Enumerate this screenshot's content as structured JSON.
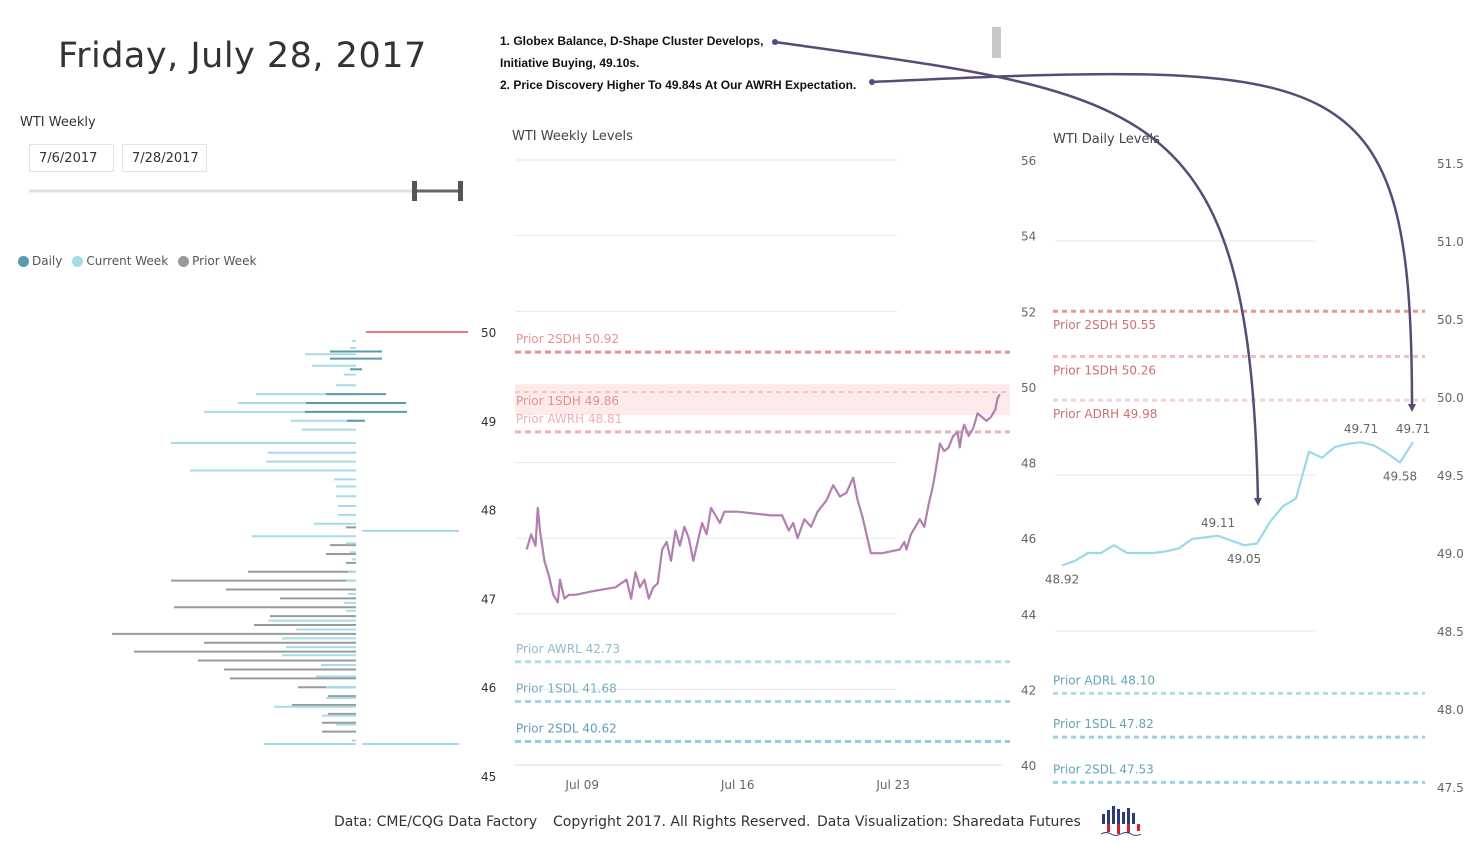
{
  "header": {
    "date_title": "Friday, July 28, 2017"
  },
  "slicer": {
    "label": "WTI Weekly",
    "start_date": "7/6/2017",
    "end_date": "7/28/2017"
  },
  "legend": {
    "items": [
      {
        "label": "Daily",
        "color": "#5b99ad"
      },
      {
        "label": "Current Week",
        "color": "#a6dce9"
      },
      {
        "label": "Prior Week",
        "color": "#9a9a9a"
      }
    ]
  },
  "notes": {
    "line1": "1. Globex Balance, D-Shape Cluster Develops,",
    "line2": "Initiative Buying, 49.10s.",
    "line3": "2. Price Discovery Higher To 49.84s At Our AWRH Expectation."
  },
  "colors": {
    "price_line": "#b27fb0",
    "daily_line": "#98daec",
    "high_levels": "#e57d7d",
    "low_levels": "#8ecfe0",
    "arrow": "#5a4a78",
    "gridline": "#e6e6e6"
  },
  "footer": {
    "source": "Data: CME/CQG Data Factory",
    "copyright": "Copyright 2017. All Rights Reserved.",
    "credit": "Data Visualization: Sharedata Futures"
  },
  "chart_data": [
    {
      "id": "volume_profile",
      "type": "bar",
      "orientation": "horizontal",
      "title": "",
      "y_ticks": [
        50,
        49,
        48,
        47,
        46,
        45
      ],
      "ylim": [
        45,
        50
      ],
      "reference_line": {
        "price": 50.0,
        "color": "#e57d7d"
      },
      "series": [
        {
          "name": "Daily",
          "bars": [
            [
              49.78,
              52
            ],
            [
              49.7,
              52
            ],
            [
              49.58,
              12
            ],
            [
              49.3,
              60
            ],
            [
              49.2,
              100
            ],
            [
              49.1,
              102
            ],
            [
              49.0,
              18
            ]
          ]
        },
        {
          "name": "Current Week",
          "bars": [
            [
              49.9,
              4
            ],
            [
              49.82,
              6
            ],
            [
              49.75,
              51
            ],
            [
              49.62,
              44
            ],
            [
              49.52,
              12
            ],
            [
              49.4,
              20
            ],
            [
              49.3,
              100
            ],
            [
              49.2,
              118
            ],
            [
              49.1,
              152
            ],
            [
              49.0,
              65
            ],
            [
              48.9,
              54
            ],
            [
              48.75,
              185
            ],
            [
              48.64,
              88
            ],
            [
              48.54,
              90
            ],
            [
              48.44,
              166
            ],
            [
              48.34,
              22
            ],
            [
              48.26,
              20
            ],
            [
              48.15,
              20
            ],
            [
              48.04,
              18
            ],
            [
              47.94,
              18
            ],
            [
              47.84,
              42
            ],
            [
              47.7,
              104
            ],
            [
              47.62,
              10
            ],
            [
              47.52,
              6
            ],
            [
              47.44,
              4
            ],
            [
              47.3,
              8
            ],
            [
              47.2,
              10
            ],
            [
              47.05,
              8
            ],
            [
              46.95,
              12
            ],
            [
              46.86,
              10
            ],
            [
              46.75,
              88
            ],
            [
              46.65,
              60
            ],
            [
              46.55,
              74
            ],
            [
              46.45,
              70
            ],
            [
              46.36,
              74
            ],
            [
              46.25,
              35
            ],
            [
              46.12,
              40
            ],
            [
              46.0,
              30
            ],
            [
              45.88,
              30
            ],
            [
              45.78,
              82
            ],
            [
              45.68,
              34
            ],
            [
              45.58,
              20
            ],
            [
              45.4,
              4
            ],
            [
              45.36,
              92
            ]
          ]
        },
        {
          "name": "Prior Week",
          "bars": [
            [
              47.8,
              10
            ],
            [
              47.6,
              26
            ],
            [
              47.5,
              30
            ],
            [
              47.4,
              10
            ],
            [
              47.3,
              108
            ],
            [
              47.2,
              185
            ],
            [
              47.1,
              130
            ],
            [
              47.0,
              76
            ],
            [
              46.9,
              182
            ],
            [
              46.8,
              86
            ],
            [
              46.7,
              102
            ],
            [
              46.6,
              244
            ],
            [
              46.5,
              152
            ],
            [
              46.4,
              222
            ],
            [
              46.3,
              158
            ],
            [
              46.2,
              132
            ],
            [
              46.1,
              126
            ],
            [
              46.0,
              58
            ],
            [
              45.9,
              28
            ],
            [
              45.8,
              64
            ],
            [
              45.7,
              28
            ],
            [
              45.6,
              34
            ],
            [
              45.5,
              34
            ]
          ]
        }
      ]
    },
    {
      "id": "weekly_levels",
      "type": "line",
      "title": "WTI Weekly Levels",
      "ylim": [
        40,
        56
      ],
      "y_ticks": [
        56,
        54,
        52,
        50,
        48,
        46,
        44,
        42,
        40
      ],
      "xlim": [
        6.2,
        27.9
      ],
      "x_ticks": [
        {
          "day": 9,
          "label": "Jul 09"
        },
        {
          "day": 16,
          "label": "Jul 16"
        },
        {
          "day": 23,
          "label": "Jul 23"
        }
      ],
      "levels": [
        {
          "label": "Prior 2SDH 50.92",
          "value": 50.92,
          "kind": "high",
          "opacity": 0.85
        },
        {
          "label": "Prior 1SDH 49.86",
          "value": 49.86,
          "kind": "high-band",
          "opacity": 0.85
        },
        {
          "label": "Prior AWRH 48.81",
          "value": 48.81,
          "kind": "high",
          "opacity": 0.6
        },
        {
          "label": "Prior AWRL 42.73",
          "value": 42.73,
          "kind": "low",
          "opacity": 0.7
        },
        {
          "label": "Prior 1SDL 41.68",
          "value": 41.68,
          "kind": "low",
          "opacity": 0.85
        },
        {
          "label": "Prior 2SDL 40.62",
          "value": 40.62,
          "kind": "low",
          "opacity": 1.0
        }
      ],
      "series": [
        {
          "name": "WTI",
          "points": [
            [
              6.5,
              45.7
            ],
            [
              6.7,
              46.1
            ],
            [
              6.9,
              45.8
            ],
            [
              7.0,
              46.8
            ],
            [
              7.1,
              46.2
            ],
            [
              7.3,
              45.4
            ],
            [
              7.5,
              45.0
            ],
            [
              7.7,
              44.5
            ],
            [
              7.9,
              44.3
            ],
            [
              8.0,
              44.9
            ],
            [
              8.2,
              44.4
            ],
            [
              8.4,
              44.5
            ],
            [
              8.7,
              44.5
            ],
            [
              9.5,
              44.6
            ],
            [
              10.5,
              44.7
            ],
            [
              11.0,
              44.9
            ],
            [
              11.2,
              44.4
            ],
            [
              11.4,
              45.1
            ],
            [
              11.6,
              44.7
            ],
            [
              11.8,
              44.9
            ],
            [
              12.0,
              44.4
            ],
            [
              12.2,
              44.7
            ],
            [
              12.4,
              44.8
            ],
            [
              12.6,
              45.7
            ],
            [
              12.8,
              45.9
            ],
            [
              13.0,
              45.4
            ],
            [
              13.2,
              46.2
            ],
            [
              13.4,
              45.8
            ],
            [
              13.6,
              46.3
            ],
            [
              13.8,
              46.0
            ],
            [
              14.0,
              45.4
            ],
            [
              14.2,
              45.9
            ],
            [
              14.4,
              46.4
            ],
            [
              14.6,
              46.1
            ],
            [
              14.8,
              46.8
            ],
            [
              15.0,
              46.6
            ],
            [
              15.2,
              46.4
            ],
            [
              15.4,
              46.7
            ],
            [
              16.0,
              46.7
            ],
            [
              17.5,
              46.6
            ],
            [
              18.0,
              46.6
            ],
            [
              18.3,
              46.2
            ],
            [
              18.5,
              46.4
            ],
            [
              18.7,
              46.0
            ],
            [
              19.0,
              46.5
            ],
            [
              19.3,
              46.3
            ],
            [
              19.6,
              46.7
            ],
            [
              20.0,
              47.0
            ],
            [
              20.3,
              47.4
            ],
            [
              20.6,
              47.1
            ],
            [
              20.9,
              47.2
            ],
            [
              21.2,
              47.6
            ],
            [
              21.4,
              47.0
            ],
            [
              21.6,
              46.6
            ],
            [
              21.8,
              46.1
            ],
            [
              22.0,
              45.6
            ],
            [
              22.5,
              45.6
            ],
            [
              23.3,
              45.7
            ],
            [
              23.5,
              45.9
            ],
            [
              23.6,
              45.7
            ],
            [
              23.8,
              46.1
            ],
            [
              24.0,
              46.3
            ],
            [
              24.2,
              46.5
            ],
            [
              24.4,
              46.3
            ],
            [
              24.6,
              46.9
            ],
            [
              24.8,
              47.4
            ],
            [
              25.0,
              48.1
            ],
            [
              25.1,
              48.5
            ],
            [
              25.3,
              48.3
            ],
            [
              25.5,
              48.4
            ],
            [
              25.7,
              48.7
            ],
            [
              25.9,
              48.8
            ],
            [
              26.0,
              48.4
            ],
            [
              26.1,
              48.8
            ],
            [
              26.2,
              49.0
            ],
            [
              26.4,
              48.7
            ],
            [
              26.6,
              48.9
            ],
            [
              26.8,
              49.3
            ],
            [
              27.0,
              49.2
            ],
            [
              27.2,
              49.1
            ],
            [
              27.4,
              49.2
            ],
            [
              27.6,
              49.4
            ],
            [
              27.7,
              49.7
            ],
            [
              27.8,
              49.8
            ]
          ]
        }
      ]
    },
    {
      "id": "daily_levels",
      "type": "line",
      "title": "WTI Daily Levels",
      "ylim": [
        47.5,
        51.5
      ],
      "y_ticks": [
        51.5,
        51.0,
        50.5,
        50.0,
        49.5,
        49.0,
        48.5,
        48.0,
        47.5
      ],
      "levels": [
        {
          "label": "Prior 2SDH 50.55",
          "value": 50.55,
          "kind": "high",
          "opacity": 0.8
        },
        {
          "label": "Prior 1SDH 50.26",
          "value": 50.26,
          "kind": "high",
          "opacity": 0.5
        },
        {
          "label": "Prior ADRH 49.98",
          "value": 49.98,
          "kind": "high",
          "opacity": 0.35
        },
        {
          "label": "Prior ADRL 48.10",
          "value": 48.1,
          "kind": "low",
          "opacity": 0.7
        },
        {
          "label": "Prior 1SDL 47.82",
          "value": 47.82,
          "kind": "low",
          "opacity": 0.9
        },
        {
          "label": "Prior 2SDL 47.53",
          "value": 47.53,
          "kind": "low",
          "opacity": 0.9
        }
      ],
      "series": [
        {
          "name": "WTI",
          "values": [
            48.92,
            48.95,
            49.0,
            49.0,
            49.05,
            49.0,
            49.0,
            49.0,
            49.01,
            49.03,
            49.09,
            49.1,
            49.11,
            49.08,
            49.05,
            49.06,
            49.2,
            49.3,
            49.35,
            49.65,
            49.61,
            49.68,
            49.7,
            49.71,
            49.69,
            49.64,
            49.58,
            49.71
          ]
        }
      ],
      "annotations": [
        {
          "index": 0,
          "label": "48.92",
          "pos": "below"
        },
        {
          "index": 12,
          "label": "49.11",
          "pos": "above"
        },
        {
          "index": 14,
          "label": "49.05",
          "pos": "below"
        },
        {
          "index": 23,
          "label": "49.71",
          "pos": "above"
        },
        {
          "index": 26,
          "label": "49.58",
          "pos": "below"
        },
        {
          "index": 27,
          "label": "49.71",
          "pos": "above"
        }
      ]
    }
  ]
}
